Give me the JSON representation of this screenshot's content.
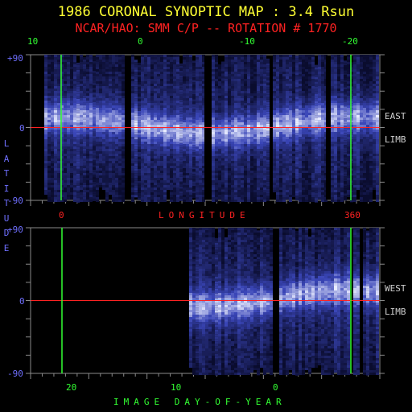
{
  "title": "1986 CORONAL SYNOPTIC MAP : 3.4 Rsun",
  "subtitle": "NCAR/HAO: SMM C/P -- ROTATION # 1770",
  "top_axis_ticks": [
    "10",
    "0",
    "-10",
    "-20"
  ],
  "upper_panel": {
    "lat_ticks": [
      "+90",
      "0",
      "-90"
    ],
    "side_label": [
      "EAST",
      "LIMB"
    ],
    "bottom_ticks": [
      "0",
      "360"
    ],
    "bottom_label": "LONGITUDE"
  },
  "lower_panel": {
    "lat_ticks": [
      "+90",
      "0",
      "-90"
    ],
    "side_label": [
      "WEST",
      "LIMB"
    ],
    "bottom_ticks": [
      "20",
      "10",
      "0"
    ],
    "bottom_label": "IMAGE DAY-OF-YEAR"
  },
  "vertical_axis_label": "LATITUDE",
  "colors": {
    "title": "#ffff33",
    "subtitle": "#ff2222",
    "day_axis": "#33ff33",
    "latitude_axis": "#6f6fff",
    "longitude_axis": "#ff2222",
    "limb_label": "#cfcfcf",
    "equator_line": "#ff2222",
    "marker_line": "#33ff33",
    "frame": "#8a8a8a",
    "map_dark": "#0a0c2e",
    "map_mid": "#3a46b8",
    "map_bright": "#e8ecff"
  }
}
